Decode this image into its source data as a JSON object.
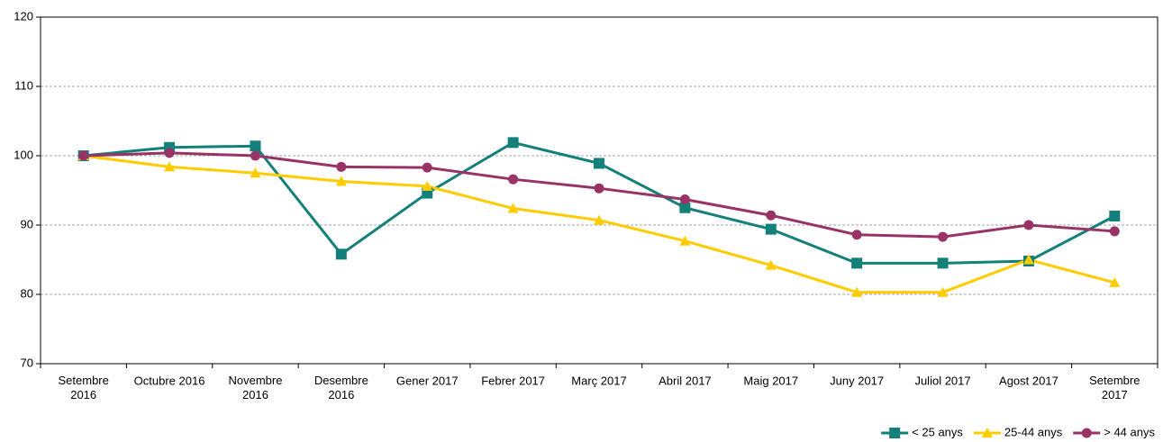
{
  "chart_data": {
    "type": "line",
    "categories": [
      "Setembre 2016",
      "Octubre 2016",
      "Novembre 2016",
      "Desembre 2016",
      "Gener 2017",
      "Febrer 2017",
      "Març 2017",
      "Abril 2017",
      "Maig 2017",
      "Juny 2017",
      "Juliol 2017",
      "Agost 2017",
      "Setembre 2017"
    ],
    "series": [
      {
        "name": "< 25 anys",
        "color": "#138079",
        "marker": "square",
        "values": [
          100,
          101.2,
          101.4,
          85.8,
          94.6,
          101.9,
          98.9,
          92.5,
          89.4,
          84.5,
          84.5,
          84.8,
          91.3
        ]
      },
      {
        "name": "25-44 anys",
        "color": "#ffcc00",
        "marker": "triangle",
        "values": [
          100,
          98.4,
          97.5,
          96.3,
          95.6,
          92.4,
          90.7,
          87.7,
          84.2,
          80.3,
          80.3,
          85,
          81.7
        ]
      },
      {
        "name": "> 44 anys",
        "color": "#993366",
        "marker": "circle",
        "values": [
          100,
          100.4,
          100,
          98.4,
          98.3,
          96.6,
          95.3,
          93.7,
          91.4,
          88.6,
          88.3,
          90,
          89.1
        ]
      }
    ],
    "ylim": [
      70,
      120
    ],
    "yticks": [
      70,
      80,
      90,
      100,
      110,
      120
    ],
    "grid": true,
    "legend": "bottom-right"
  }
}
